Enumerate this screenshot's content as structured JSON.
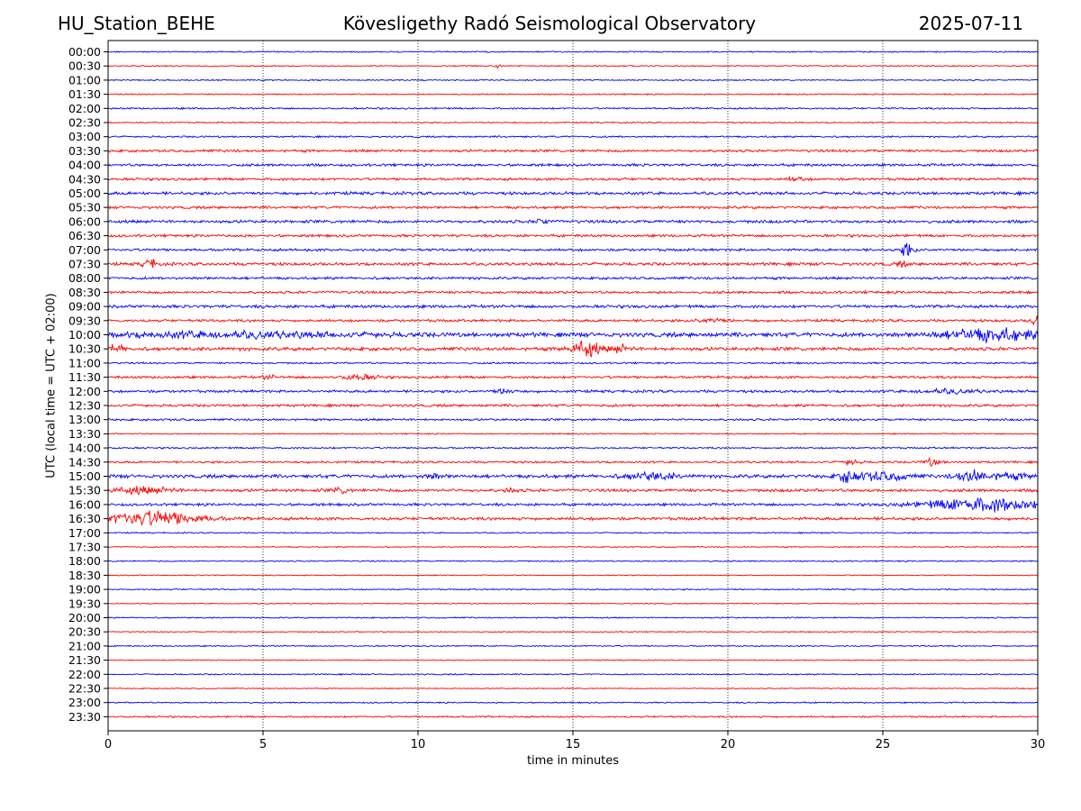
{
  "header": {
    "station": "HU_Station_BEHE",
    "title": "Kövesligethy Radó Seismological Observatory",
    "date": "2025-07-11"
  },
  "chart_data": {
    "type": "helicorder",
    "xlabel": "time in minutes",
    "ylabel": "UTC (local time = UTC + 02:00)",
    "xlim": [
      0,
      30
    ],
    "xticks": [
      0,
      5,
      10,
      15,
      20,
      25,
      30
    ],
    "grid": "vertical dotted at each x tick",
    "colors": [
      "#0000ff",
      "#ff0000"
    ],
    "rows": [
      {
        "label": "00:00",
        "noise": 0.15,
        "events": []
      },
      {
        "label": "00:30",
        "noise": 0.15,
        "events": [
          {
            "t": 12.6,
            "amp": 0.5,
            "dur": 0.1
          }
        ]
      },
      {
        "label": "01:00",
        "noise": 0.15,
        "events": []
      },
      {
        "label": "01:30",
        "noise": 0.15,
        "events": []
      },
      {
        "label": "02:00",
        "noise": 0.2,
        "events": []
      },
      {
        "label": "02:30",
        "noise": 0.15,
        "events": []
      },
      {
        "label": "03:00",
        "noise": 0.2,
        "events": []
      },
      {
        "label": "03:30",
        "noise": 0.3,
        "events": []
      },
      {
        "label": "04:00",
        "noise": 0.3,
        "events": []
      },
      {
        "label": "04:30",
        "noise": 0.3,
        "events": [
          {
            "t": 22.2,
            "amp": 0.5,
            "dur": 0.4
          }
        ]
      },
      {
        "label": "05:00",
        "noise": 0.35,
        "events": []
      },
      {
        "label": "05:30",
        "noise": 0.3,
        "events": []
      },
      {
        "label": "06:00",
        "noise": 0.35,
        "events": [
          {
            "t": 14.0,
            "amp": 0.7,
            "dur": 0.3
          }
        ]
      },
      {
        "label": "06:30",
        "noise": 0.3,
        "events": []
      },
      {
        "label": "07:00",
        "noise": 0.3,
        "events": [
          {
            "t": 25.8,
            "amp": 1.6,
            "dur": 0.3
          }
        ]
      },
      {
        "label": "07:30",
        "noise": 0.35,
        "events": [
          {
            "t": 1.35,
            "amp": 1.2,
            "dur": 0.3
          },
          {
            "t": 25.6,
            "amp": 0.5,
            "dur": 0.3
          }
        ]
      },
      {
        "label": "08:00",
        "noise": 0.3,
        "events": []
      },
      {
        "label": "08:30",
        "noise": 0.3,
        "events": []
      },
      {
        "label": "09:00",
        "noise": 0.35,
        "events": []
      },
      {
        "label": "09:30",
        "noise": 0.3,
        "events": [
          {
            "t": 19.5,
            "amp": 0.5,
            "dur": 0.8
          },
          {
            "t": 29.9,
            "amp": 0.9,
            "dur": 0.2
          }
        ]
      },
      {
        "label": "10:00",
        "noise": 0.5,
        "events": [
          {
            "t": 4.0,
            "amp": 0.5,
            "dur": 8.0
          },
          {
            "t": 28.5,
            "amp": 1.3,
            "dur": 3.0
          }
        ]
      },
      {
        "label": "10:30",
        "noise": 0.4,
        "events": [
          {
            "t": 0.2,
            "amp": 0.8,
            "dur": 0.6
          },
          {
            "t": 15.4,
            "amp": 2.0,
            "dur": 0.8
          },
          {
            "t": 16.5,
            "amp": 0.8,
            "dur": 0.5
          }
        ]
      },
      {
        "label": "11:00",
        "noise": 0.2,
        "events": []
      },
      {
        "label": "11:30",
        "noise": 0.3,
        "events": [
          {
            "t": 8.1,
            "amp": 0.6,
            "dur": 1.0
          },
          {
            "t": 5.2,
            "amp": 0.4,
            "dur": 0.3
          }
        ]
      },
      {
        "label": "12:00",
        "noise": 0.3,
        "events": [
          {
            "t": 12.8,
            "amp": 0.5,
            "dur": 0.6
          },
          {
            "t": 27.0,
            "amp": 0.4,
            "dur": 2.0
          }
        ]
      },
      {
        "label": "12:30",
        "noise": 0.3,
        "events": []
      },
      {
        "label": "13:00",
        "noise": 0.25,
        "events": []
      },
      {
        "label": "13:30",
        "noise": 0.15,
        "events": []
      },
      {
        "label": "14:00",
        "noise": 0.2,
        "events": []
      },
      {
        "label": "14:30",
        "noise": 0.25,
        "events": [
          {
            "t": 24.0,
            "amp": 0.6,
            "dur": 0.4
          },
          {
            "t": 26.6,
            "amp": 0.9,
            "dur": 0.4
          }
        ]
      },
      {
        "label": "15:00",
        "noise": 0.4,
        "events": [
          {
            "t": 10.5,
            "amp": 0.5,
            "dur": 0.5
          },
          {
            "t": 17.5,
            "amp": 0.8,
            "dur": 1.5
          },
          {
            "t": 23.9,
            "amp": 1.2,
            "dur": 0.6
          },
          {
            "t": 25.0,
            "amp": 0.9,
            "dur": 1.5
          },
          {
            "t": 27.8,
            "amp": 1.2,
            "dur": 0.8
          },
          {
            "t": 29.0,
            "amp": 0.6,
            "dur": 1.5
          }
        ]
      },
      {
        "label": "15:30",
        "noise": 0.35,
        "events": [
          {
            "t": 1.0,
            "amp": 0.7,
            "dur": 2.0
          },
          {
            "t": 7.5,
            "amp": 0.6,
            "dur": 0.4
          },
          {
            "t": 13.0,
            "amp": 0.4,
            "dur": 0.3
          }
        ]
      },
      {
        "label": "16:00",
        "noise": 0.3,
        "events": [
          {
            "t": 28.2,
            "amp": 1.6,
            "dur": 3.5
          }
        ]
      },
      {
        "label": "16:30",
        "noise": 0.35,
        "events": [
          {
            "t": 1.4,
            "amp": 1.7,
            "dur": 3.0
          }
        ]
      },
      {
        "label": "17:00",
        "noise": 0.15,
        "events": []
      },
      {
        "label": "17:30",
        "noise": 0.12,
        "events": []
      },
      {
        "label": "18:00",
        "noise": 0.15,
        "events": []
      },
      {
        "label": "18:30",
        "noise": 0.12,
        "events": []
      },
      {
        "label": "19:00",
        "noise": 0.15,
        "events": []
      },
      {
        "label": "19:30",
        "noise": 0.12,
        "events": []
      },
      {
        "label": "20:00",
        "noise": 0.15,
        "events": []
      },
      {
        "label": "20:30",
        "noise": 0.12,
        "events": []
      },
      {
        "label": "21:00",
        "noise": 0.15,
        "events": []
      },
      {
        "label": "21:30",
        "noise": 0.12,
        "events": []
      },
      {
        "label": "22:00",
        "noise": 0.15,
        "events": []
      },
      {
        "label": "22:30",
        "noise": 0.12,
        "events": []
      },
      {
        "label": "23:00",
        "noise": 0.15,
        "events": []
      },
      {
        "label": "23:30",
        "noise": 0.2,
        "events": []
      }
    ]
  }
}
